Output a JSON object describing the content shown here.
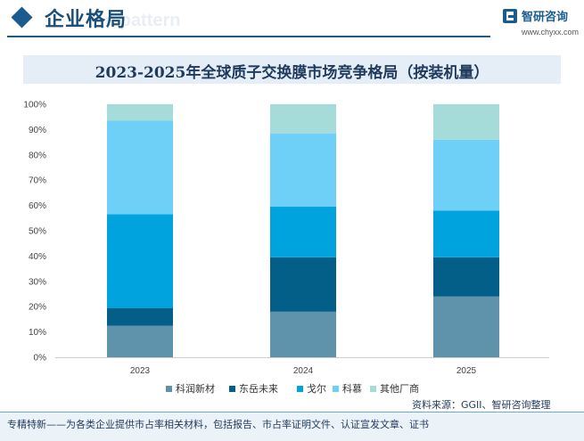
{
  "header": {
    "section_title": "企业格局",
    "ghost_text": "e pattern"
  },
  "logo": {
    "name": "智研咨询",
    "url": "www.chyxx.com"
  },
  "chart_data": {
    "type": "bar",
    "stacked": true,
    "title": "2023-2025年全球质子交换膜市场竞争格局（按装机量）",
    "categories": [
      "2023",
      "2024",
      "2025"
    ],
    "series": [
      {
        "name": "科润新材",
        "color": "#5f93ab",
        "values": [
          12.5,
          18.0,
          24.0
        ]
      },
      {
        "name": "东岳未来",
        "color": "#035f88",
        "values": [
          7.0,
          21.5,
          15.5
        ]
      },
      {
        "name": "戈尔",
        "color": "#00a3dd",
        "values": [
          37.0,
          20.0,
          18.5
        ]
      },
      {
        "name": "科慕",
        "color": "#6ed0f6",
        "values": [
          37.0,
          29.0,
          28.0
        ]
      },
      {
        "name": "其他厂商",
        "color": "#a5dbd9",
        "values": [
          6.5,
          11.5,
          14.0
        ]
      }
    ],
    "y_ticks": [
      "0%",
      "10%",
      "20%",
      "30%",
      "40%",
      "50%",
      "60%",
      "70%",
      "80%",
      "90%",
      "100%"
    ],
    "ylim": [
      0,
      100
    ],
    "grid": false,
    "legend_position": "bottom"
  },
  "source": "资料来源：GGII、智研咨询整理",
  "footer": "专精特新——为各类企业提供市占率相关材料，包括报告、市占率证明文件、认证宣发文章、证书"
}
